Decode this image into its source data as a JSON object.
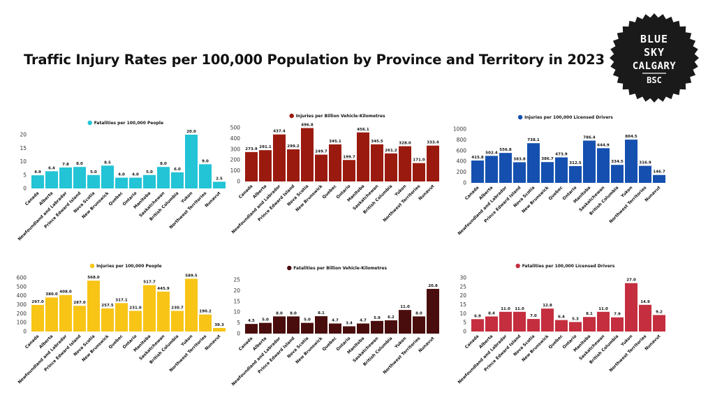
{
  "page": {
    "title": "Traffic Injury Rates per 100,000 Population by Province and Territory in 2023"
  },
  "logo": {
    "lines": [
      "BLUE",
      "SKY",
      "CALGARY"
    ],
    "abbr": "BSC"
  },
  "chart_data": [
    {
      "type": "bar",
      "title": "Fatalities per 100,000 People",
      "color": "#22C4D6",
      "categories": [
        "Canada",
        "Alberta",
        "Newfoundland and Labrador",
        "Prince Edward Island",
        "Nova Scotia",
        "New Brunswick",
        "Quebec",
        "Ontario",
        "Manitoba",
        "Saskatchewan",
        "British Columbia",
        "Yukon",
        "Northwest Territories",
        "Nunavut"
      ],
      "values": [
        4.9,
        6.4,
        7.8,
        8.0,
        5.0,
        8.5,
        4.0,
        4.0,
        5.0,
        8.0,
        6.0,
        20.0,
        9.0,
        2.5
      ],
      "labels": [
        "4.9",
        "6.4",
        "7.8",
        "8.0",
        "5.0",
        "8.5",
        "4.0",
        "4.0",
        "5.0",
        "8.0",
        "6.0",
        "20.0",
        "9.0",
        "2.5"
      ],
      "ylim": [
        0,
        20
      ],
      "yticks": [
        0,
        5,
        10,
        15,
        20
      ]
    },
    {
      "type": "bar",
      "title": "Injuries per Billion Vehicle-Kilometres",
      "color": "#9B1A0F",
      "categories": [
        "Canada",
        "Alberta",
        "Newfoundland and Labrador",
        "Prince Edward Island",
        "Nova Scotia",
        "New Brunswick",
        "Quebec",
        "Ontario",
        "Manitoba",
        "Saskatchewan",
        "British Columbia",
        "Yukon",
        "Northwest Territories",
        "Nunavut"
      ],
      "values": [
        273.9,
        291.1,
        437.4,
        299.2,
        496.8,
        249.7,
        345.1,
        199.7,
        456.1,
        345.5,
        261.2,
        328.0,
        171.0,
        333.4
      ],
      "labels": [
        "273.9",
        "291.1",
        "437.4",
        "299.2",
        "496.8",
        "249.7",
        "345.1",
        "199.7",
        "456.1",
        "345.5",
        "261.2",
        "328.0",
        "171.0",
        "333.4"
      ],
      "ylim": [
        0,
        500
      ],
      "yticks": [
        0,
        100,
        200,
        300,
        400,
        500
      ]
    },
    {
      "type": "bar",
      "title": "Injuries per 100,000 Licensed Drivers",
      "color": "#1550B0",
      "categories": [
        "Canada",
        "Alberta",
        "Newfoundland and Labrador",
        "Prince Edward Island",
        "Nova Scotia",
        "New Brunswick",
        "Quebec",
        "Ontario",
        "Manitoba",
        "Saskatchewan",
        "British Columbia",
        "Yukon",
        "Northwest Territories",
        "Nunavut"
      ],
      "values": [
        415.8,
        502.4,
        556.8,
        383.8,
        738.1,
        386.7,
        473.9,
        312.5,
        786.4,
        644.9,
        334.5,
        804.5,
        316.9,
        146.7
      ],
      "labels": [
        "415.8",
        "502.4",
        "556.8",
        "383.8",
        "738.1",
        "386.7",
        "473.9",
        "312.5",
        "786.4",
        "644.9",
        "334.5",
        "804.5",
        "316.9",
        "146.7"
      ],
      "ylim": [
        0,
        1000
      ],
      "yticks": [
        0,
        200,
        400,
        600,
        800,
        1000
      ]
    },
    {
      "type": "bar",
      "title": "Injuries per 100,000 People",
      "color": "#F8C516",
      "categories": [
        "Canada",
        "Alberta",
        "Newfoundland and Labrador",
        "Prince Edward Island",
        "Nova Scotia",
        "New Brunswick",
        "Quebec",
        "Ontario",
        "Manitoba",
        "Saskatchewan",
        "British Columbia",
        "Yukon",
        "Northwest Territories",
        "Nunavut"
      ],
      "values": [
        297.0,
        380.0,
        408.0,
        287.0,
        568.0,
        257.5,
        317.1,
        231.0,
        517.7,
        445.9,
        230.7,
        589.5,
        190.2,
        39.3
      ],
      "labels": [
        "297.0",
        "380.0",
        "408.0",
        "287.0",
        "568.0",
        "257.5",
        "317.1",
        "231.0",
        "517.7",
        "445.9",
        "230.7",
        "589.5",
        "190.2",
        "39.3"
      ],
      "ylim": [
        0,
        600
      ],
      "yticks": [
        0,
        100,
        200,
        300,
        400,
        500,
        600
      ]
    },
    {
      "type": "bar",
      "title": "Fatalities per Billion Vehicle-Kilometres",
      "color": "#4A0D0D",
      "categories": [
        "Canada",
        "Alberta",
        "Newfoundland and Labrador",
        "Prince Edward Island",
        "Nova Scotia",
        "New Brunswick",
        "Quebec",
        "Ontario",
        "Manitoba",
        "Saskatchewan",
        "British Columbia",
        "Yukon",
        "Northwest Territories",
        "Nunavut"
      ],
      "values": [
        4.5,
        5.0,
        8.0,
        8.0,
        5.0,
        8.1,
        4.7,
        3.4,
        4.7,
        5.9,
        6.2,
        11.0,
        8.0,
        20.8
      ],
      "labels": [
        "4.5",
        "5.0",
        "8.0",
        "8.0",
        "5.0",
        "8.1",
        "4.7",
        "3.4",
        "4.7",
        "5.9",
        "6.2",
        "11.0",
        "8.0",
        "20.8"
      ],
      "ylim": [
        0,
        25
      ],
      "yticks": [
        0,
        5,
        10,
        15,
        20,
        25
      ]
    },
    {
      "type": "bar",
      "title": "Fatalities per 100,000 Licensed Drivers",
      "color": "#C42E3E",
      "categories": [
        "Canada",
        "Alberta",
        "Newfoundland and Labrador",
        "Prince Edward Island",
        "Nova Scotia",
        "New Brunswick",
        "Quebec",
        "Ontario",
        "Manitoba",
        "Saskatchewan",
        "British Columbia",
        "Yukon",
        "Northwest Territories",
        "Nunavut"
      ],
      "values": [
        6.9,
        8.4,
        11.0,
        11.0,
        7.0,
        12.8,
        6.4,
        5.3,
        8.1,
        11.0,
        7.9,
        27.0,
        14.9,
        9.2
      ],
      "labels": [
        "6.9",
        "8.4",
        "11.0",
        "11.0",
        "7.0",
        "12.8",
        "6.4",
        "5.3",
        "8.1",
        "11.0",
        "7.9",
        "27.0",
        "14.9",
        "9.2"
      ],
      "ylim": [
        0,
        30
      ],
      "yticks": [
        0,
        5,
        10,
        15,
        20,
        25,
        30
      ]
    }
  ]
}
